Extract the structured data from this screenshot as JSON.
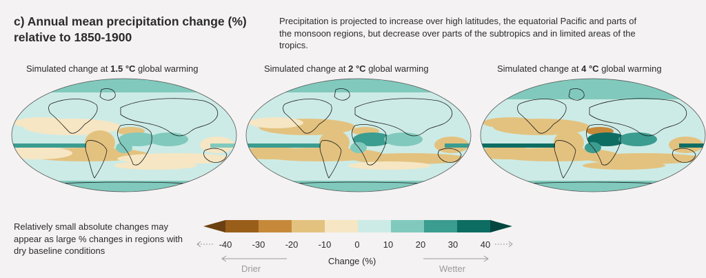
{
  "header": {
    "title_line1": "c) Annual mean precipitation change (%)",
    "title_line2": "relative to 1850-1900",
    "description": "Precipitation is projected to increase over high latitudes, the equatorial Pacific and parts of the monsoon regions, but decrease over parts of the subtropics and in limited areas of the tropics."
  },
  "panels": [
    {
      "prefix": "Simulated change at ",
      "level": "1.5 °C",
      "suffix": " global warming",
      "intensity": 0.7
    },
    {
      "prefix": "Simulated change at ",
      "level": "2 °C",
      "suffix": " global warming",
      "intensity": 0.85
    },
    {
      "prefix": "Simulated change at ",
      "level": "4 °C",
      "suffix": " global warming",
      "intensity": 1.3
    }
  ],
  "note": "Relatively small absolute changes may appear as large % changes in regions with dry baseline conditions",
  "legend": {
    "ticks": [
      "-40",
      "-30",
      "-20",
      "-10",
      "0",
      "10",
      "20",
      "30",
      "40"
    ],
    "colors": [
      "#6b4012",
      "#9a5e1b",
      "#c6893a",
      "#e3c27f",
      "#f6e6c3",
      "#cdebe6",
      "#81c9bd",
      "#3b9c90",
      "#0e6d63",
      "#03463f"
    ],
    "title": "Change (%)",
    "drier": "Drier",
    "wetter": "Wetter"
  },
  "ocean_color": "#cdebe6",
  "coast_color": "#1a1a1a"
}
